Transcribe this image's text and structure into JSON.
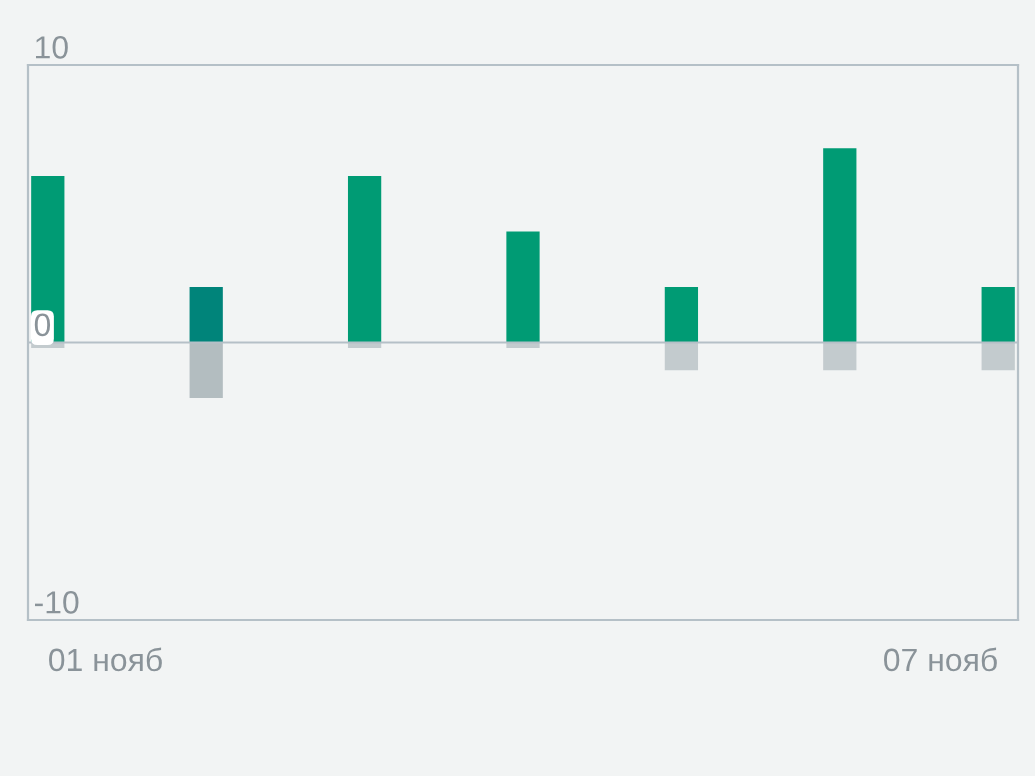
{
  "chart_data": {
    "type": "bar",
    "stacked": true,
    "categories": [
      "01 нояб",
      null,
      null,
      null,
      null,
      null,
      "07 нояб"
    ],
    "series": [
      {
        "colors": [
          "#009b74",
          "#00847a",
          "#009b74",
          "#009b74",
          "#009b74",
          "#009b74",
          "#009b74"
        ],
        "values": [
          6,
          2,
          6,
          4,
          2,
          7,
          2
        ]
      },
      {
        "colors": [
          "#c3cbce",
          "#b3bdc0",
          "#c3cbce",
          "#c3cbce",
          "#c3cbce",
          "#c3cbce",
          "#c3cbce"
        ],
        "values": [
          -0.2,
          -2,
          -0.2,
          -0.2,
          -1,
          -1,
          -1
        ]
      }
    ],
    "ylim": [
      -10,
      10
    ],
    "yticks": [
      -10,
      0,
      10
    ],
    "grid": "y"
  }
}
